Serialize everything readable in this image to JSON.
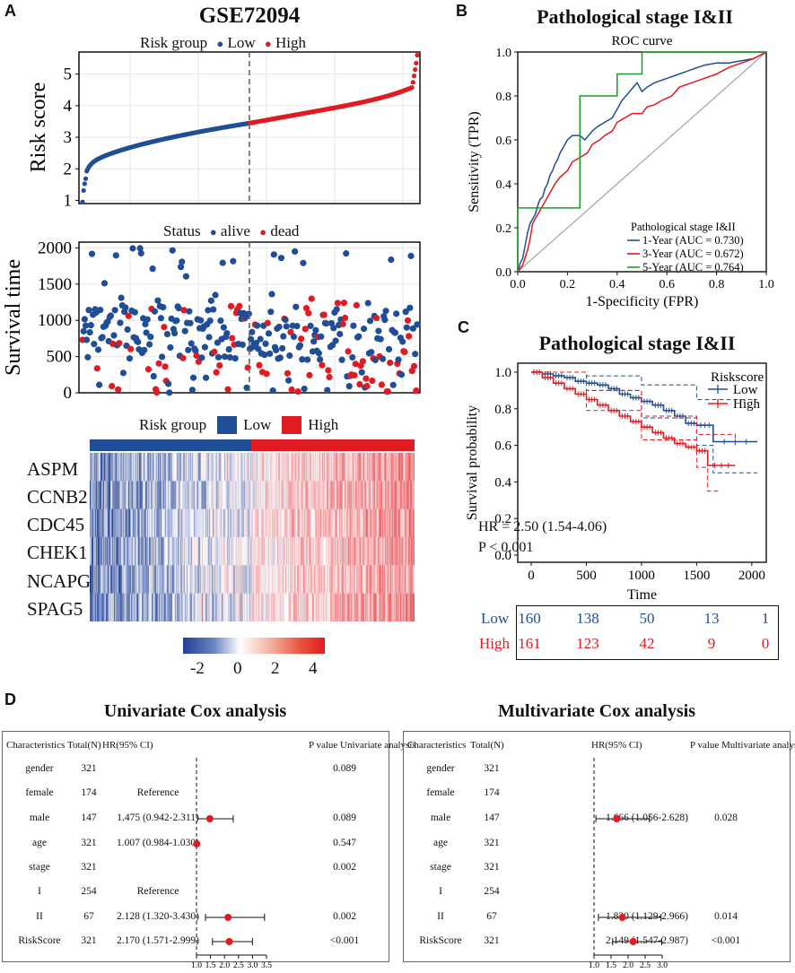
{
  "panel_labels": {
    "a": "A",
    "b": "B",
    "c": "C",
    "d": "D"
  },
  "colors": {
    "low": "#1f4e96",
    "high": "#e11b22",
    "dead": "#e11b22",
    "alive": "#1f4e96",
    "green": "#1a9c2a",
    "diag": "#aaaaaa",
    "hm_low": "#1f3f94",
    "hm_mid": "#ffffff",
    "hm_high": "#e11b22"
  },
  "panelA": {
    "title": "GSE72094",
    "risk_legend": {
      "title": "Risk group",
      "low": "Low",
      "high": "High"
    },
    "status_legend": {
      "title": "Status",
      "alive": "alive",
      "dead": "dead"
    },
    "heat_legend": {
      "title": "Risk group",
      "low": "Low",
      "high": "High"
    },
    "genes": [
      "ASPM",
      "CCNB2",
      "CDC45",
      "CHEK1",
      "NCAPG",
      "SPAG5"
    ],
    "colorbar": {
      "ticks": [
        "-2",
        "0",
        "2",
        "4"
      ]
    }
  },
  "panelB": {
    "title": "Pathological stage I&II"
  },
  "panelC": {
    "title": "Pathological stage I&II",
    "hr_text": "HR = 2.50 (1.54-4.06)",
    "p_text": "P < 0.001",
    "risk_table": [
      {
        "label": "Low",
        "values": [
          "160",
          "138",
          "50",
          "13",
          "1"
        ]
      },
      {
        "label": "High",
        "values": [
          "161",
          "123",
          "42",
          "9",
          "0"
        ]
      }
    ]
  },
  "panelD": {
    "univariate": {
      "title": "Univariate Cox analysis",
      "headers": {
        "char": "Characteristics",
        "total": "Total(N)",
        "hr": "HR(95% CI)",
        "p": "P value Univariate analysis"
      },
      "rows": [
        {
          "char": "gender",
          "total": "321",
          "hr_text": "",
          "p": "0.089"
        },
        {
          "char": "female",
          "total": "174",
          "hr_text": "Reference",
          "p": ""
        },
        {
          "char": "male",
          "total": "147",
          "hr_text": "1.475 (0.942-2.311)",
          "p": "0.089"
        },
        {
          "char": "age",
          "total": "321",
          "hr_text": "1.007 (0.984-1.030)",
          "p": "0.547"
        },
        {
          "char": "stage",
          "total": "321",
          "hr_text": "",
          "p": "0.002"
        },
        {
          "char": "I",
          "total": "254",
          "hr_text": "Reference",
          "p": ""
        },
        {
          "char": "II",
          "total": "67",
          "hr_text": "2.128 (1.320-3.430)",
          "p": "0.002"
        },
        {
          "char": "RiskScore",
          "total": "321",
          "hr_text": "2.170 (1.571-2.999)",
          "p": "<0.001"
        }
      ],
      "axis_ticks": [
        "1.0",
        "1.5",
        "2.0",
        "2.5",
        "3.0",
        "3.5"
      ]
    },
    "multivariate": {
      "title": "Multivariate Cox analysis",
      "headers": {
        "char": "Characteristics",
        "total": "Total(N)",
        "hr": "HR(95% CI)",
        "p": "P value Multivariate analysis"
      },
      "rows": [
        {
          "char": "gender",
          "total": "321",
          "hr_text": "",
          "p": ""
        },
        {
          "char": "female",
          "total": "174",
          "hr_text": "",
          "p": ""
        },
        {
          "char": "male",
          "total": "147",
          "hr_text": "1.666 (1.056-2.628)",
          "p": "0.028"
        },
        {
          "char": "age",
          "total": "321",
          "hr_text": "",
          "p": ""
        },
        {
          "char": "stage",
          "total": "321",
          "hr_text": "",
          "p": ""
        },
        {
          "char": "I",
          "total": "254",
          "hr_text": "",
          "p": ""
        },
        {
          "char": "II",
          "total": "67",
          "hr_text": "1.830 (1.129-2.966)",
          "p": "0.014"
        },
        {
          "char": "RiskScore",
          "total": "321",
          "hr_text": "2.149 (1.547-2.987)",
          "p": "<0.001"
        }
      ],
      "axis_ticks": [
        "1.0",
        "1.5",
        "2.0",
        "2.5",
        "3.0"
      ]
    }
  },
  "chart_data": [
    {
      "type": "scatter",
      "id": "risk_score",
      "ylabel": "Risk score",
      "ylim": [
        0.9,
        5.7
      ],
      "yticks": [
        1,
        2,
        3,
        4,
        5
      ],
      "n_samples": 321,
      "low_count": 160,
      "cutoff": 3.45,
      "min": 0.95,
      "max": 5.6
    },
    {
      "type": "scatter",
      "id": "survival_time",
      "ylabel": "Survival time",
      "ylim": [
        0,
        2080
      ],
      "yticks": [
        0,
        500,
        1000,
        1500,
        2000
      ]
    },
    {
      "type": "heatmap",
      "id": "gene_expression",
      "genes": [
        "ASPM",
        "CCNB2",
        "CDC45",
        "CHEK1",
        "NCAPG",
        "SPAG5"
      ],
      "color_range": [
        -3,
        4.5
      ]
    },
    {
      "type": "line",
      "id": "roc",
      "title": "ROC curve",
      "xlabel": "1-Specificity (FPR)",
      "ylabel": "Sensitivity (TPR)",
      "xticks": [
        "0.0",
        "0.2",
        "0.4",
        "0.6",
        "0.8",
        "1.0"
      ],
      "yticks": [
        "0.0",
        "0.2",
        "0.4",
        "0.6",
        "0.8",
        "1.0"
      ],
      "legend_title": "Pathological stage I&II",
      "series": [
        {
          "name": "1-Year (AUC = 0.730)",
          "color": "#1f4e96",
          "points": [
            [
              0,
              0
            ],
            [
              0.01,
              0.04
            ],
            [
              0.02,
              0.06
            ],
            [
              0.03,
              0.12
            ],
            [
              0.04,
              0.18
            ],
            [
              0.05,
              0.22
            ],
            [
              0.06,
              0.24
            ],
            [
              0.07,
              0.26
            ],
            [
              0.08,
              0.3
            ],
            [
              0.09,
              0.33
            ],
            [
              0.1,
              0.34
            ],
            [
              0.11,
              0.38
            ],
            [
              0.12,
              0.4
            ],
            [
              0.13,
              0.44
            ],
            [
              0.14,
              0.46
            ],
            [
              0.15,
              0.49
            ],
            [
              0.16,
              0.51
            ],
            [
              0.17,
              0.54
            ],
            [
              0.18,
              0.56
            ],
            [
              0.2,
              0.6
            ],
            [
              0.22,
              0.62
            ],
            [
              0.25,
              0.62
            ],
            [
              0.27,
              0.6
            ],
            [
              0.3,
              0.64
            ],
            [
              0.32,
              0.66
            ],
            [
              0.35,
              0.68
            ],
            [
              0.38,
              0.7
            ],
            [
              0.4,
              0.74
            ],
            [
              0.42,
              0.78
            ],
            [
              0.45,
              0.82
            ],
            [
              0.48,
              0.86
            ],
            [
              0.5,
              0.82
            ],
            [
              0.52,
              0.84
            ],
            [
              0.55,
              0.86
            ],
            [
              0.6,
              0.88
            ],
            [
              0.65,
              0.9
            ],
            [
              0.7,
              0.92
            ],
            [
              0.75,
              0.94
            ],
            [
              0.8,
              0.95
            ],
            [
              0.85,
              0.95
            ],
            [
              0.9,
              0.96
            ],
            [
              0.95,
              0.97
            ],
            [
              1,
              1
            ]
          ]
        },
        {
          "name": "3-Year (AUC = 0.672)",
          "color": "#e11b22",
          "points": [
            [
              0,
              0
            ],
            [
              0.02,
              0.03
            ],
            [
              0.04,
              0.1
            ],
            [
              0.05,
              0.15
            ],
            [
              0.06,
              0.22
            ],
            [
              0.08,
              0.26
            ],
            [
              0.1,
              0.3
            ],
            [
              0.12,
              0.34
            ],
            [
              0.14,
              0.38
            ],
            [
              0.15,
              0.4
            ],
            [
              0.17,
              0.43
            ],
            [
              0.2,
              0.46
            ],
            [
              0.22,
              0.5
            ],
            [
              0.25,
              0.52
            ],
            [
              0.28,
              0.54
            ],
            [
              0.3,
              0.58
            ],
            [
              0.33,
              0.6
            ],
            [
              0.35,
              0.62
            ],
            [
              0.38,
              0.64
            ],
            [
              0.4,
              0.68
            ],
            [
              0.43,
              0.7
            ],
            [
              0.46,
              0.72
            ],
            [
              0.5,
              0.72
            ],
            [
              0.52,
              0.75
            ],
            [
              0.55,
              0.76
            ],
            [
              0.58,
              0.78
            ],
            [
              0.62,
              0.8
            ],
            [
              0.65,
              0.84
            ],
            [
              0.7,
              0.86
            ],
            [
              0.75,
              0.88
            ],
            [
              0.8,
              0.9
            ],
            [
              0.85,
              0.93
            ],
            [
              0.9,
              0.95
            ],
            [
              0.95,
              0.97
            ],
            [
              1,
              1
            ]
          ]
        },
        {
          "name": "5-Year (AUC = 0.764)",
          "color": "#1a9c2a",
          "points": [
            [
              0,
              0
            ],
            [
              0,
              0.29
            ],
            [
              0.25,
              0.29
            ],
            [
              0.25,
              0.8
            ],
            [
              0.4,
              0.8
            ],
            [
              0.4,
              0.9
            ],
            [
              0.5,
              0.9
            ],
            [
              0.5,
              1
            ],
            [
              1,
              1
            ]
          ]
        }
      ]
    },
    {
      "type": "line",
      "id": "km",
      "title": "Pathological stage I&II",
      "xlabel": "Time",
      "ylabel": "Survival probability",
      "xticks": [
        0,
        500,
        1000,
        1500,
        2000
      ],
      "yticks": [
        "0.0",
        "0.2",
        "0.4",
        "0.6",
        "0.8",
        "1.0"
      ],
      "legend_title": "Riskscore",
      "series": [
        {
          "name": "Low",
          "color": "#1f4e96",
          "points": [
            [
              0,
              1
            ],
            [
              100,
              0.99
            ],
            [
              200,
              0.98
            ],
            [
              300,
              0.97
            ],
            [
              400,
              0.95
            ],
            [
              500,
              0.94
            ],
            [
              600,
              0.93
            ],
            [
              700,
              0.91
            ],
            [
              800,
              0.88
            ],
            [
              900,
              0.86
            ],
            [
              1000,
              0.84
            ],
            [
              1100,
              0.82
            ],
            [
              1200,
              0.79
            ],
            [
              1300,
              0.76
            ],
            [
              1400,
              0.72
            ],
            [
              1500,
              0.71
            ],
            [
              1650,
              0.62
            ],
            [
              2050,
              0.62
            ]
          ],
          "ci_upper": [
            [
              0,
              1
            ],
            [
              500,
              0.98
            ],
            [
              1000,
              0.93
            ],
            [
              1500,
              0.85
            ],
            [
              1650,
              0.85
            ],
            [
              2050,
              0.85
            ]
          ],
          "ci_lower": [
            [
              0,
              1
            ],
            [
              500,
              0.9
            ],
            [
              1000,
              0.75
            ],
            [
              1500,
              0.6
            ],
            [
              1650,
              0.45
            ],
            [
              2050,
              0.45
            ]
          ]
        },
        {
          "name": "High",
          "color": "#e11b22",
          "points": [
            [
              0,
              1
            ],
            [
              100,
              0.97
            ],
            [
              200,
              0.94
            ],
            [
              300,
              0.91
            ],
            [
              400,
              0.88
            ],
            [
              500,
              0.85
            ],
            [
              600,
              0.82
            ],
            [
              700,
              0.79
            ],
            [
              800,
              0.76
            ],
            [
              900,
              0.73
            ],
            [
              1000,
              0.7
            ],
            [
              1100,
              0.67
            ],
            [
              1200,
              0.64
            ],
            [
              1300,
              0.61
            ],
            [
              1400,
              0.59
            ],
            [
              1500,
              0.57
            ],
            [
              1600,
              0.49
            ],
            [
              1850,
              0.49
            ]
          ],
          "ci_upper": [
            [
              0,
              1
            ],
            [
              500,
              0.9
            ],
            [
              1000,
              0.76
            ],
            [
              1500,
              0.66
            ],
            [
              1850,
              0.6
            ]
          ],
          "ci_lower": [
            [
              0,
              1
            ],
            [
              500,
              0.79
            ],
            [
              1000,
              0.63
            ],
            [
              1500,
              0.48
            ],
            [
              1600,
              0.35
            ],
            [
              1700,
              0.35
            ]
          ]
        }
      ]
    },
    {
      "type": "scatter",
      "id": "forest_univariate",
      "xlim": [
        1.0,
        3.5
      ],
      "xticks": [
        1.0,
        1.5,
        2.0,
        2.5,
        3.0,
        3.5
      ],
      "estimates": [
        {
          "row": "male",
          "hr": 1.475,
          "lo": 0.942,
          "hi": 2.311
        },
        {
          "row": "age",
          "hr": 1.007,
          "lo": 0.984,
          "hi": 1.03
        },
        {
          "row": "II",
          "hr": 2.128,
          "lo": 1.32,
          "hi": 3.43
        },
        {
          "row": "RiskScore",
          "hr": 2.17,
          "lo": 1.571,
          "hi": 2.999
        }
      ]
    },
    {
      "type": "scatter",
      "id": "forest_multivariate",
      "xlim": [
        1.0,
        3.0
      ],
      "xticks": [
        1.0,
        1.5,
        2.0,
        2.5,
        3.0
      ],
      "estimates": [
        {
          "row": "male",
          "hr": 1.666,
          "lo": 1.056,
          "hi": 2.628
        },
        {
          "row": "II",
          "hr": 1.83,
          "lo": 1.129,
          "hi": 2.966
        },
        {
          "row": "RiskScore",
          "hr": 2.149,
          "lo": 1.547,
          "hi": 2.987
        }
      ]
    }
  ]
}
